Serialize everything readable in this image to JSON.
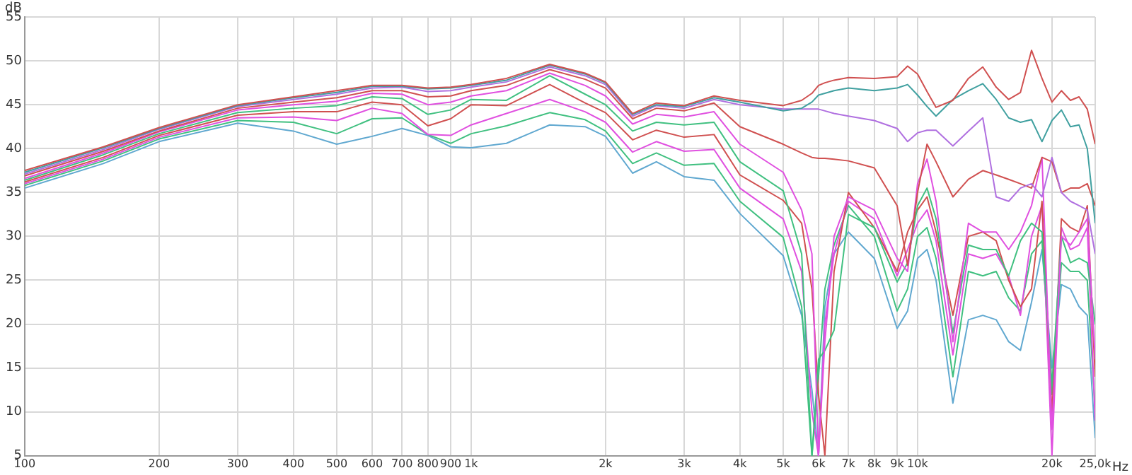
{
  "chart_data": {
    "type": "line",
    "xlabel": "Hz",
    "ylabel": "dB",
    "log": "x",
    "grid": true,
    "legend": false,
    "marker": "none",
    "line_style": "solid",
    "xlim": [
      100,
      25000
    ],
    "ylim": [
      5,
      55
    ],
    "xticks": [
      100,
      200,
      300,
      400,
      500,
      600,
      700,
      800,
      900,
      {
        "value": 1000,
        "label": "1k"
      },
      {
        "value": 2000,
        "label": "2k"
      },
      {
        "value": 3000,
        "label": "3k"
      },
      {
        "value": 4000,
        "label": "4k"
      },
      {
        "value": 5000,
        "label": "5k"
      },
      {
        "value": 6000,
        "label": "6k"
      },
      {
        "value": 7000,
        "label": "7k"
      },
      {
        "value": 8000,
        "label": "8k"
      },
      {
        "value": 9000,
        "label": "9k"
      },
      {
        "value": 10000,
        "label": "10k"
      },
      {
        "value": 20000,
        "label": "20k"
      },
      {
        "value": 25000,
        "label": "25,0k"
      }
    ],
    "yticks": [
      5,
      10,
      15,
      20,
      25,
      30,
      35,
      40,
      45,
      50,
      55
    ],
    "x": [
      100,
      150,
      200,
      300,
      400,
      500,
      600,
      700,
      800,
      900,
      1000,
      1200,
      1500,
      1800,
      2000,
      2300,
      2600,
      3000,
      3500,
      4000,
      5000,
      5500,
      5800,
      6000,
      6200,
      6500,
      7000,
      8000,
      9000,
      9500,
      10000,
      10500,
      11000,
      12000,
      13000,
      14000,
      15000,
      16000,
      17000,
      18000,
      19000,
      20000,
      21000,
      22000,
      23000,
      24000,
      25000
    ],
    "series": [
      {
        "color": "#d05050",
        "values": [
          37.5,
          40.2,
          42.4,
          45.0,
          45.9,
          46.6,
          47.2,
          47.2,
          46.9,
          47.0,
          47.3,
          48.0,
          49.6,
          48.6,
          47.6,
          44.0,
          45.2,
          44.9,
          46.0,
          45.5,
          44.9,
          45.5,
          46.3,
          47.2,
          47.5,
          47.8,
          48.1,
          48.0,
          48.2,
          49.4,
          48.5,
          46.5,
          44.7,
          45.5,
          48.0,
          49.3,
          47.0,
          45.6,
          46.4,
          51.2,
          48.0,
          45.3,
          46.6,
          45.5,
          45.9,
          44.5,
          40.5
        ]
      },
      {
        "color": "#40a0a0",
        "values": [
          37.3,
          40.1,
          42.3,
          44.9,
          45.8,
          46.4,
          47.1,
          47.1,
          46.8,
          46.9,
          47.2,
          47.8,
          49.5,
          48.5,
          47.5,
          43.9,
          45.0,
          44.8,
          45.8,
          45.3,
          44.3,
          44.6,
          45.3,
          46.1,
          46.3,
          46.6,
          46.9,
          46.6,
          46.9,
          47.3,
          46.1,
          44.8,
          43.7,
          45.6,
          46.6,
          47.4,
          45.6,
          43.5,
          43.0,
          43.3,
          40.8,
          43.2,
          44.4,
          42.5,
          42.7,
          40.0,
          31.5
        ]
      },
      {
        "color": "#b070e0",
        "values": [
          37.1,
          39.9,
          42.2,
          44.8,
          45.6,
          46.2,
          46.9,
          47.0,
          46.5,
          46.6,
          47.0,
          47.6,
          49.3,
          48.3,
          47.3,
          43.7,
          44.9,
          44.6,
          45.6,
          45.0,
          44.5,
          44.5,
          44.5,
          44.5,
          44.3,
          44.0,
          43.7,
          43.2,
          42.3,
          40.8,
          41.8,
          42.1,
          42.1,
          40.3,
          42.0,
          43.5,
          34.5,
          34.0,
          35.5,
          36.0,
          34.5,
          39.0,
          35.0,
          34.0,
          33.5,
          33.0,
          28.0
        ]
      },
      {
        "color": "#d05050",
        "values": [
          36.9,
          39.7,
          42.0,
          44.6,
          45.3,
          45.8,
          46.6,
          46.6,
          45.9,
          46.0,
          46.6,
          47.2,
          49.0,
          47.9,
          46.9,
          43.4,
          44.6,
          44.3,
          45.2,
          42.5,
          40.5,
          39.5,
          39.0,
          38.9,
          38.9,
          38.8,
          38.6,
          37.8,
          33.5,
          26.7,
          35.0,
          40.5,
          38.5,
          34.5,
          36.5,
          37.5,
          37.0,
          36.5,
          36.0,
          35.5,
          39.0,
          38.5,
          35.0,
          35.5,
          35.5,
          36.0,
          33.5
        ]
      },
      {
        "color": "#e050e0",
        "values": [
          36.6,
          39.5,
          41.9,
          44.4,
          45.0,
          45.4,
          46.3,
          46.2,
          45.0,
          45.3,
          46.0,
          46.6,
          48.6,
          47.2,
          46.0,
          42.8,
          43.9,
          43.6,
          44.2,
          40.5,
          37.3,
          33.0,
          28.0,
          5.0,
          18.0,
          30.0,
          34.5,
          33.0,
          27.5,
          26.0,
          36.0,
          38.8,
          34.0,
          18.0,
          31.5,
          30.5,
          30.5,
          28.5,
          30.5,
          33.5,
          39.0,
          8.0,
          30.0,
          29.0,
          30.5,
          32.0,
          16.0
        ]
      },
      {
        "color": "#40c080",
        "values": [
          36.4,
          39.3,
          41.7,
          44.1,
          44.6,
          44.9,
          45.9,
          45.7,
          43.9,
          44.4,
          45.6,
          45.5,
          48.3,
          46.2,
          45.0,
          42.0,
          43.0,
          42.7,
          43.0,
          38.5,
          35.2,
          28.0,
          5.0,
          16.0,
          17.0,
          19.3,
          32.5,
          31.0,
          24.8,
          27.0,
          33.5,
          35.5,
          32.0,
          19.0,
          29.0,
          28.5,
          28.5,
          25.5,
          29.5,
          31.5,
          30.5,
          13.0,
          30.0,
          27.0,
          27.5,
          27.0,
          20.0
        ]
      },
      {
        "color": "#d05050",
        "values": [
          36.2,
          39.0,
          41.5,
          43.8,
          44.2,
          44.2,
          45.3,
          45.0,
          42.6,
          43.4,
          45.0,
          44.9,
          47.3,
          45.2,
          44.1,
          41.0,
          42.1,
          41.3,
          41.6,
          37.0,
          34.1,
          31.5,
          24.0,
          12.0,
          5.0,
          26.0,
          35.0,
          31.0,
          26.0,
          30.5,
          33.0,
          34.5,
          30.5,
          21.0,
          30.0,
          30.5,
          29.5,
          25.0,
          22.0,
          24.0,
          34.0,
          9.7,
          32.0,
          31.0,
          30.5,
          33.5,
          14.0
        ]
      },
      {
        "color": "#e050e0",
        "values": [
          36.0,
          38.8,
          41.3,
          43.5,
          43.6,
          43.2,
          44.6,
          44.0,
          41.6,
          41.5,
          42.7,
          44.0,
          45.6,
          44.2,
          43.0,
          39.6,
          40.8,
          39.7,
          39.9,
          35.5,
          32.0,
          26.0,
          10.0,
          5.0,
          20.0,
          28.0,
          34.0,
          32.0,
          25.5,
          28.5,
          31.5,
          33.0,
          29.5,
          16.5,
          28.0,
          27.5,
          28.0,
          25.5,
          21.0,
          30.0,
          33.5,
          5.0,
          31.0,
          28.5,
          29.0,
          31.0,
          9.0
        ]
      },
      {
        "color": "#40c080",
        "values": [
          35.8,
          38.6,
          41.1,
          43.2,
          43.0,
          41.7,
          43.4,
          43.5,
          41.6,
          40.6,
          41.7,
          42.6,
          44.1,
          43.3,
          42.0,
          38.3,
          39.5,
          38.1,
          38.3,
          34.0,
          29.9,
          22.0,
          5.0,
          14.0,
          24.0,
          29.0,
          33.5,
          30.0,
          21.5,
          24.0,
          30.0,
          31.0,
          27.5,
          14.0,
          26.0,
          25.5,
          26.0,
          23.0,
          21.5,
          28.0,
          29.5,
          12.0,
          27.0,
          26.0,
          26.0,
          25.0,
          10.0
        ]
      },
      {
        "color": "#60a8d0",
        "values": [
          35.5,
          38.3,
          40.8,
          42.9,
          42.0,
          40.5,
          41.4,
          42.3,
          41.5,
          40.2,
          40.1,
          40.6,
          42.7,
          42.5,
          41.4,
          37.2,
          38.5,
          36.8,
          36.4,
          32.6,
          27.8,
          21.0,
          12.5,
          5.0,
          22.0,
          28.0,
          30.5,
          27.5,
          19.5,
          21.5,
          27.5,
          28.5,
          25.0,
          11.0,
          20.5,
          21.0,
          20.5,
          18.0,
          17.0,
          22.5,
          28.5,
          15.0,
          24.5,
          24.0,
          22.0,
          21.0,
          7.0
        ]
      }
    ]
  }
}
